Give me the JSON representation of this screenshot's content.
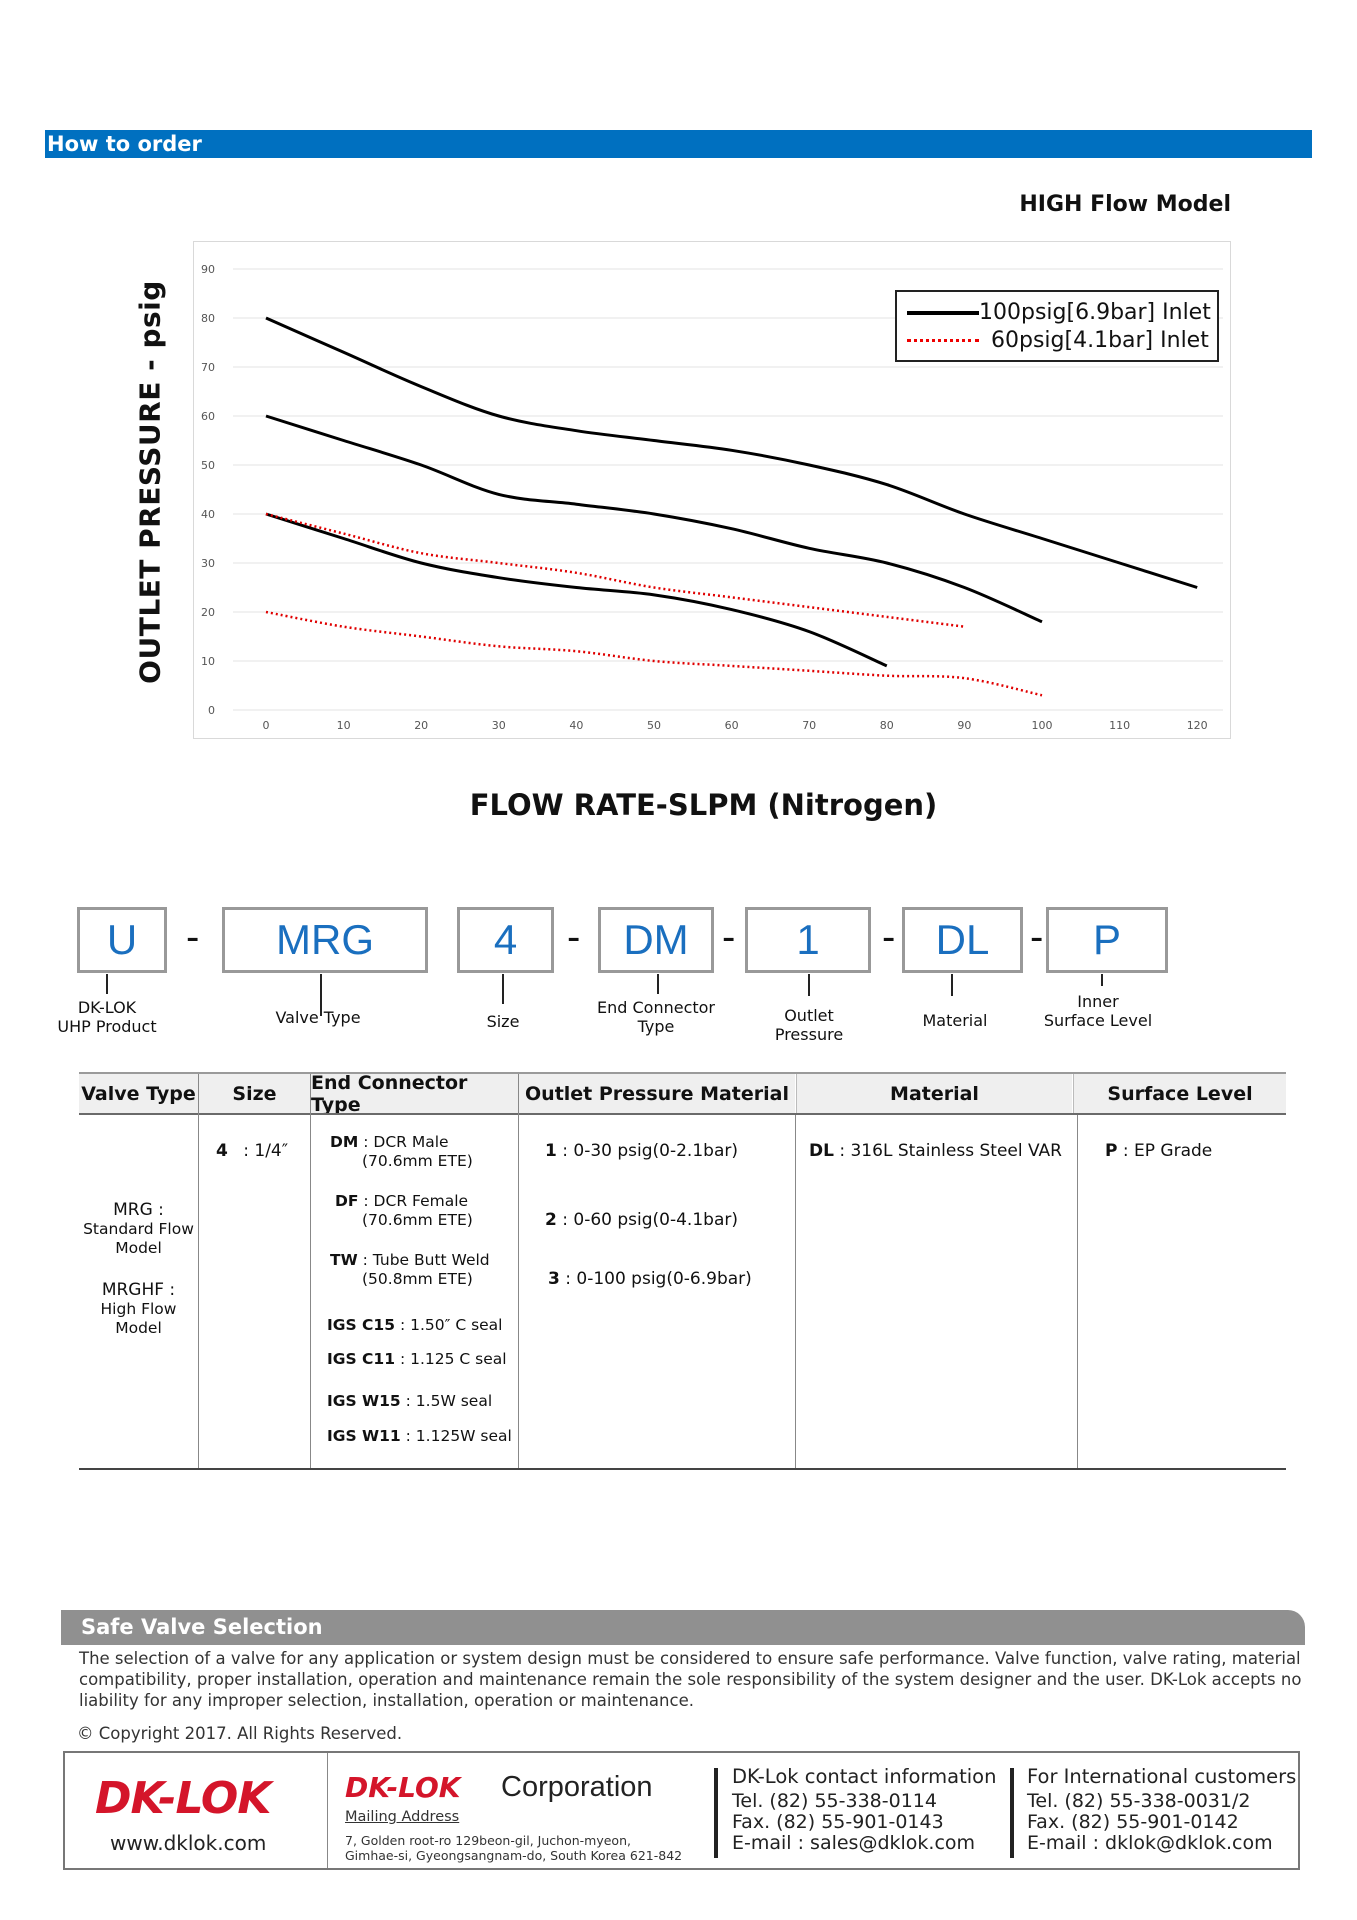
{
  "header": {
    "title": "How to order"
  },
  "chart_title": "HIGH Flow Model",
  "chart_data": {
    "type": "line",
    "title": "HIGH Flow Model",
    "xlabel": "FLOW RATE-SLPM (Nitrogen)",
    "ylabel": "OUTLET PRESSURE - psig",
    "xlim": [
      0,
      130
    ],
    "ylim": [
      0,
      90
    ],
    "xticks": [
      "0",
      "10",
      "20",
      "30",
      "40",
      "50",
      "60",
      "70",
      "80",
      "90",
      "100",
      "110",
      "120"
    ],
    "yticks": [
      "0",
      "10",
      "20",
      "30",
      "40",
      "50",
      "60",
      "70",
      "80",
      "90"
    ],
    "grid": true,
    "legend_position": "top-right",
    "legend": [
      "100psig[6.9bar] Inlet",
      "60psig[4.1bar] Inlet"
    ],
    "series": [
      {
        "name": "100psig[6.9bar] Inlet",
        "style": "solid",
        "color": "#000000",
        "points": [
          [
            0,
            80
          ],
          [
            10,
            73
          ],
          [
            20,
            66
          ],
          [
            30,
            60
          ],
          [
            40,
            57
          ],
          [
            50,
            55
          ],
          [
            60,
            53
          ],
          [
            70,
            50
          ],
          [
            80,
            46
          ],
          [
            90,
            40
          ],
          [
            100,
            35
          ],
          [
            110,
            30
          ],
          [
            120,
            25
          ]
        ]
      },
      {
        "name": "100psig[6.9bar] Inlet",
        "style": "solid",
        "color": "#000000",
        "points": [
          [
            0,
            60
          ],
          [
            10,
            55
          ],
          [
            20,
            50
          ],
          [
            30,
            44
          ],
          [
            40,
            42
          ],
          [
            50,
            40
          ],
          [
            60,
            37
          ],
          [
            70,
            33
          ],
          [
            80,
            30
          ],
          [
            90,
            25
          ],
          [
            100,
            18
          ]
        ]
      },
      {
        "name": "100psig[6.9bar] Inlet",
        "style": "solid",
        "color": "#000000",
        "points": [
          [
            0,
            40
          ],
          [
            10,
            35
          ],
          [
            20,
            30
          ],
          [
            30,
            27
          ],
          [
            40,
            25
          ],
          [
            50,
            23.5
          ],
          [
            60,
            20.5
          ],
          [
            70,
            16
          ],
          [
            80,
            9
          ]
        ]
      },
      {
        "name": "60psig[4.1bar] Inlet",
        "style": "dotted",
        "color": "#e00000",
        "points": [
          [
            0,
            40
          ],
          [
            10,
            36
          ],
          [
            20,
            32
          ],
          [
            30,
            30
          ],
          [
            40,
            28
          ],
          [
            50,
            25
          ],
          [
            60,
            23
          ],
          [
            70,
            21
          ],
          [
            80,
            19
          ],
          [
            90,
            17
          ]
        ]
      },
      {
        "name": "60psig[4.1bar] Inlet",
        "style": "dotted",
        "color": "#e00000",
        "points": [
          [
            0,
            20
          ],
          [
            10,
            17
          ],
          [
            20,
            15
          ],
          [
            30,
            13
          ],
          [
            40,
            12
          ],
          [
            50,
            10
          ],
          [
            60,
            9
          ],
          [
            70,
            8
          ],
          [
            80,
            7
          ],
          [
            90,
            6.5
          ],
          [
            100,
            3
          ]
        ]
      }
    ]
  },
  "order_code": {
    "segments": [
      {
        "code": "U",
        "label": "DK-LOK\nUHP Product"
      },
      {
        "code": "MRG",
        "label": "Valve Type"
      },
      {
        "code": "4",
        "label": "Size"
      },
      {
        "code": "DM",
        "label": "End Connector\nType"
      },
      {
        "code": "1",
        "label": "Outlet\nPressure"
      },
      {
        "code": "DL",
        "label": "Material"
      },
      {
        "code": "P",
        "label": "Inner\nSurface Level"
      }
    ],
    "dash": "-"
  },
  "table": {
    "headers": [
      "Valve Type",
      "Size",
      "End Connector Type",
      "Outlet Pressure Material",
      "Material",
      "Surface Level"
    ],
    "valve_types": [
      {
        "code": "MRG :",
        "desc": "Standard Flow\nModel"
      },
      {
        "code": "MRGHF :",
        "desc": "High Flow\nModel"
      }
    ],
    "sizes": [
      {
        "code": "4",
        "desc": ": 1/4″"
      }
    ],
    "end_connectors": [
      {
        "code": "DM",
        "desc": ": DCR Male",
        "sub": "(70.6mm ETE)"
      },
      {
        "code": "DF",
        "desc": ": DCR Female",
        "sub": "(70.6mm ETE)"
      },
      {
        "code": "TW",
        "desc": ": Tube Butt Weld",
        "sub": "(50.8mm ETE)"
      },
      {
        "code": "IGS C15",
        "desc": ": 1.50″ C seal",
        "sub": ""
      },
      {
        "code": "IGS C11",
        "desc": ": 1.125 C seal",
        "sub": ""
      },
      {
        "code": "IGS W15",
        "desc": ": 1.5W seal",
        "sub": ""
      },
      {
        "code": "IGS W11",
        "desc": ": 1.125W seal",
        "sub": ""
      }
    ],
    "outlet_pressures": [
      {
        "code": "1",
        "desc": ": 0-30 psig(0-2.1bar)"
      },
      {
        "code": "2",
        "desc": ": 0-60 psig(0-4.1bar)"
      },
      {
        "code": "3",
        "desc": ": 0-100 psig(0-6.9bar)"
      }
    ],
    "materials": [
      {
        "code": "DL",
        "desc": ": 316L Stainless Steel VAR"
      }
    ],
    "surface_levels": [
      {
        "code": "P",
        "desc": ": EP Grade"
      }
    ]
  },
  "safe_selection": {
    "title": "Safe Valve Selection",
    "text": "The selection of a valve for any application or system design must be considered to ensure safe performance. Valve function, valve rating, material compatibility, proper installation, operation and maintenance remain the sole responsibility of the system designer and the user. DK-Lok accepts no liability for any improper selection, installation, operation or maintenance.",
    "copyright": "© Copyright 2017. All Rights Reserved."
  },
  "footer": {
    "logo": "DK-LOK",
    "url": "www.dklok.com",
    "corp_logo": "DK-LOK",
    "corp_name": "Corporation",
    "mailing_label": "Mailing Address",
    "address_line1": "7, Golden root-ro 129beon-gil, Juchon-myeon,",
    "address_line2": "Gimhae-si, Gyeongsangnam-do, South Korea 621-842",
    "contact": {
      "title": "DK-Lok contact information",
      "tel": "Tel. (82) 55-338-0114",
      "fax": "Fax. (82) 55-901-0143",
      "email": "E-mail : sales@dklok.com"
    },
    "intl": {
      "title": "For International customers",
      "tel": "Tel. (82) 55-338-0031/2",
      "fax": "Fax. (82) 55-901-0142",
      "email": "E-mail : dklok@dklok.com"
    }
  }
}
